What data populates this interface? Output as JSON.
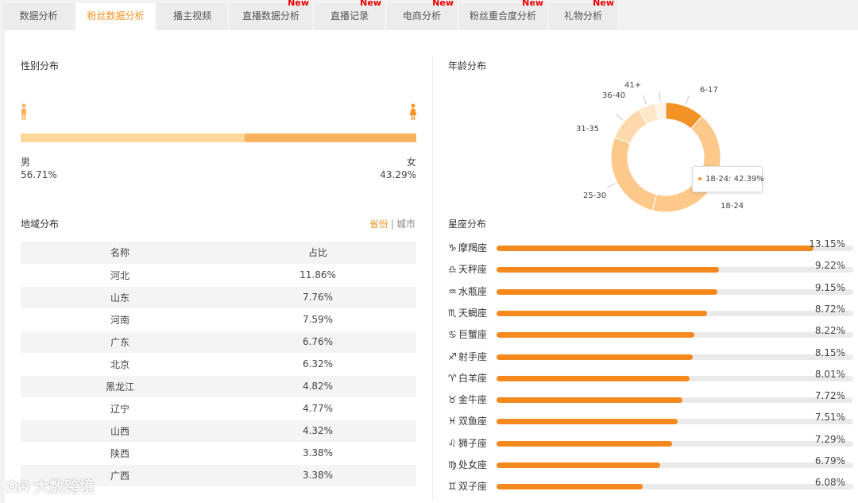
{
  "tabs": [
    {
      "label": "数据分析",
      "new": ""
    },
    {
      "label": "粉丝数据分析",
      "new": ""
    },
    {
      "label": "播主视频",
      "new": ""
    },
    {
      "label": "直播数据分析",
      "new": "New"
    },
    {
      "label": "直播记录",
      "new": "New"
    },
    {
      "label": "电商分析",
      "new": "New"
    },
    {
      "label": "粉丝重合度分析",
      "new": "New"
    },
    {
      "label": "礼物分析",
      "new": "New"
    }
  ],
  "gender": {
    "title": "性别分布",
    "male_label": "男",
    "male_pct": "56.71%",
    "male_value": 56.71,
    "female_label": "女",
    "female_pct": "43.29%",
    "female_value": 43.29,
    "male_color": "#fdd79b",
    "female_color": "#fbb25e"
  },
  "age": {
    "title": "年龄分布",
    "tooltip": "18-24: 42.39%"
  },
  "region": {
    "title": "地域分布",
    "toggle_province": "省份",
    "toggle_sep": "|",
    "toggle_city": "城市",
    "col_name": "名称",
    "col_ratio": "占比",
    "rows": [
      {
        "name": "河北",
        "pct": "11.86%"
      },
      {
        "name": "山东",
        "pct": "7.76%"
      },
      {
        "name": "河南",
        "pct": "7.59%"
      },
      {
        "name": "广东",
        "pct": "6.76%"
      },
      {
        "name": "北京",
        "pct": "6.32%"
      },
      {
        "name": "黑龙江",
        "pct": "4.82%"
      },
      {
        "name": "辽宁",
        "pct": "4.77%"
      },
      {
        "name": "山西",
        "pct": "4.32%"
      },
      {
        "name": "陕西",
        "pct": "3.38%"
      },
      {
        "name": "广西",
        "pct": "3.38%"
      }
    ]
  },
  "zodiac": {
    "title": "星座分布",
    "items": [
      {
        "sym": "♑",
        "name": "摩羯座",
        "pct": "13.15%",
        "value": 13.15
      },
      {
        "sym": "♎",
        "name": "天秤座",
        "pct": "9.22%",
        "value": 9.22
      },
      {
        "sym": "♒",
        "name": "水瓶座",
        "pct": "9.15%",
        "value": 9.15
      },
      {
        "sym": "♏",
        "name": "天蝎座",
        "pct": "8.72%",
        "value": 8.72
      },
      {
        "sym": "♋",
        "name": "巨蟹座",
        "pct": "8.22%",
        "value": 8.22
      },
      {
        "sym": "♐",
        "name": "射手座",
        "pct": "8.15%",
        "value": 8.15
      },
      {
        "sym": "♈",
        "name": "白羊座",
        "pct": "8.01%",
        "value": 8.01
      },
      {
        "sym": "♉",
        "name": "金牛座",
        "pct": "7.72%",
        "value": 7.72
      },
      {
        "sym": "♓",
        "name": "双鱼座",
        "pct": "7.51%",
        "value": 7.51
      },
      {
        "sym": "♌",
        "name": "狮子座",
        "pct": "7.29%",
        "value": 7.29
      },
      {
        "sym": "♍",
        "name": "处女座",
        "pct": "6.79%",
        "value": 6.79
      },
      {
        "sym": "♊",
        "name": "双子座",
        "pct": "6.08%",
        "value": 6.08
      }
    ]
  },
  "chart_data": {
    "type": "pie",
    "title": "年龄分布",
    "categories": [
      "6-17",
      "18-24",
      "25-30",
      "31-35",
      "36-40",
      "41+"
    ],
    "values": [
      11.5,
      42.39,
      27.0,
      11.0,
      5.0,
      3.11
    ],
    "colors": [
      "#f39325",
      "#fcc98a",
      "#fcc98a",
      "#fdd9ab",
      "#fde7c9",
      "#fef3e6"
    ]
  },
  "watermark": "大数跨境",
  "colors": {
    "accent": "#f39325",
    "bar_fill": "#f5891e",
    "track": "#eaeaea",
    "new_badge": "#e00000"
  }
}
